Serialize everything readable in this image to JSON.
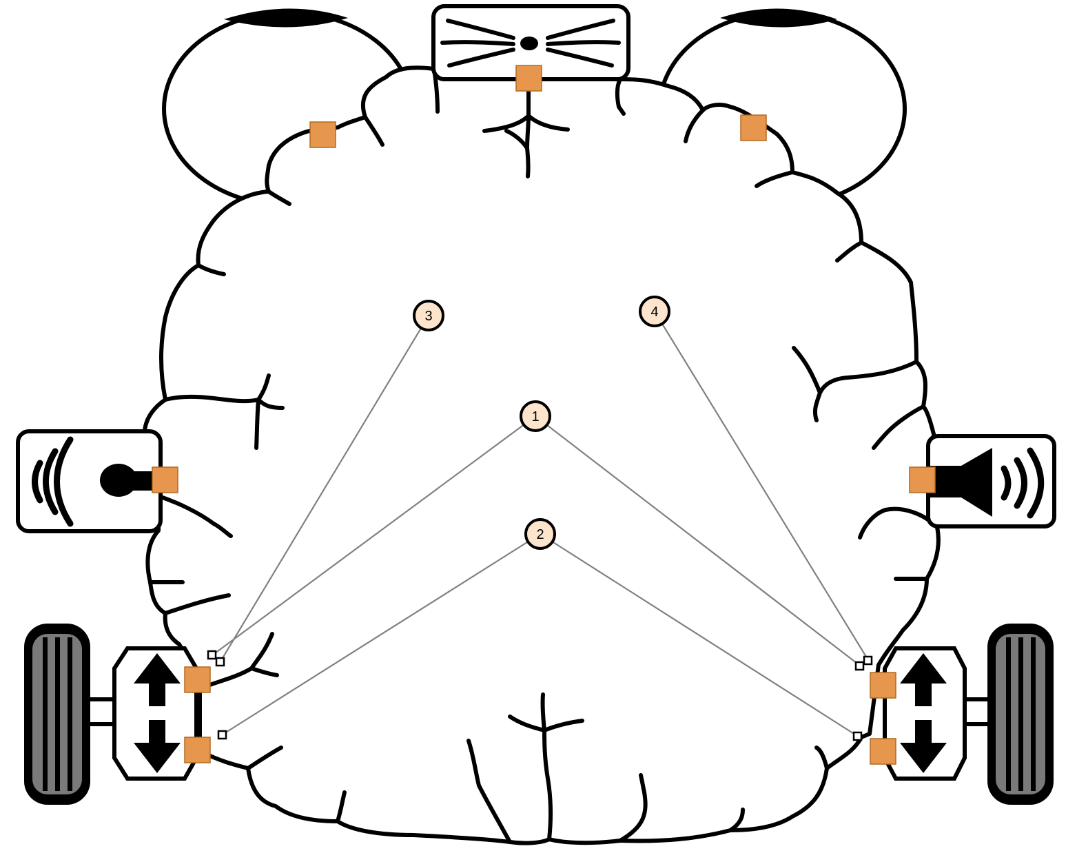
{
  "colors": {
    "port": "#E6974D",
    "node_fill": "#FDE5CD",
    "stroke": "#000000",
    "wire": "#808080",
    "tire": "#7A7A7A"
  },
  "icons": {
    "left_eye": "eye-icon",
    "right_eye": "eye-icon",
    "nose_box": "whisker-sensor-icon",
    "microphone_box": "microphone-icon",
    "speaker_box": "speaker-icon",
    "left_motor": "motor-up-down-icon",
    "right_motor": "motor-up-down-icon",
    "left_wheel": "wheel-icon",
    "right_wheel": "wheel-icon"
  },
  "nodes": [
    {
      "id": "n1",
      "label": "1"
    },
    {
      "id": "n2",
      "label": "2"
    },
    {
      "id": "n3",
      "label": "3"
    },
    {
      "id": "n4",
      "label": "4"
    }
  ]
}
